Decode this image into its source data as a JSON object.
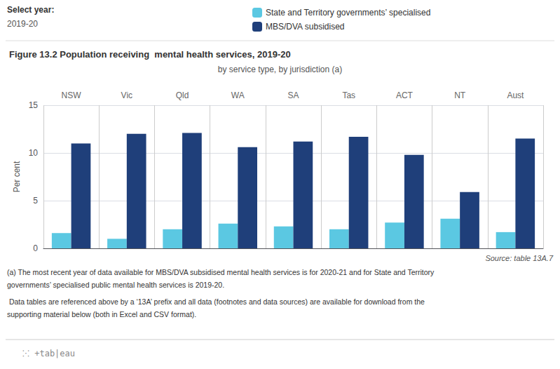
{
  "chart_data": {
    "type": "bar",
    "title": "Figure 13.2 Population receiving  mental health services, 2019-20",
    "subtitle": "by service type, by jurisdiction (a)",
    "ylabel": "Per cent",
    "categories": [
      "NSW",
      "Vic",
      "Qld",
      "WA",
      "SA",
      "Tas",
      "ACT",
      "NT",
      "Aust"
    ],
    "series": [
      {
        "name": "State and Territory governments’ specialised",
        "color": "#5bc8e2",
        "values": [
          1.6,
          1.0,
          2.0,
          2.6,
          2.3,
          2.0,
          2.7,
          3.1,
          1.7
        ]
      },
      {
        "name": "MBS/DVA subsidised",
        "color": "#1f3f7a",
        "values": [
          11.0,
          12.0,
          12.1,
          10.6,
          11.2,
          11.7,
          9.8,
          5.9,
          11.5
        ]
      }
    ],
    "ylim": [
      0,
      15
    ],
    "yticks": [
      0,
      5,
      10,
      15
    ],
    "grid": true,
    "legend": "top",
    "annotations": [
      "Select year:",
      "2019-20",
      "Source: table 13A.7",
      "(a) The most recent year of data available for MBS/DVA subsidised mental health services is for 2020-21 and for State and Territory",
      "governments’ specialised public mental health services is 2019-20.",
      " Data tables are referenced above by a ‘13A’ prefix and all data (footnotes and data sources) are available for download from the",
      "supporting material below (both in Excel and CSV format).",
      "⁙ +tab|eau"
    ]
  }
}
